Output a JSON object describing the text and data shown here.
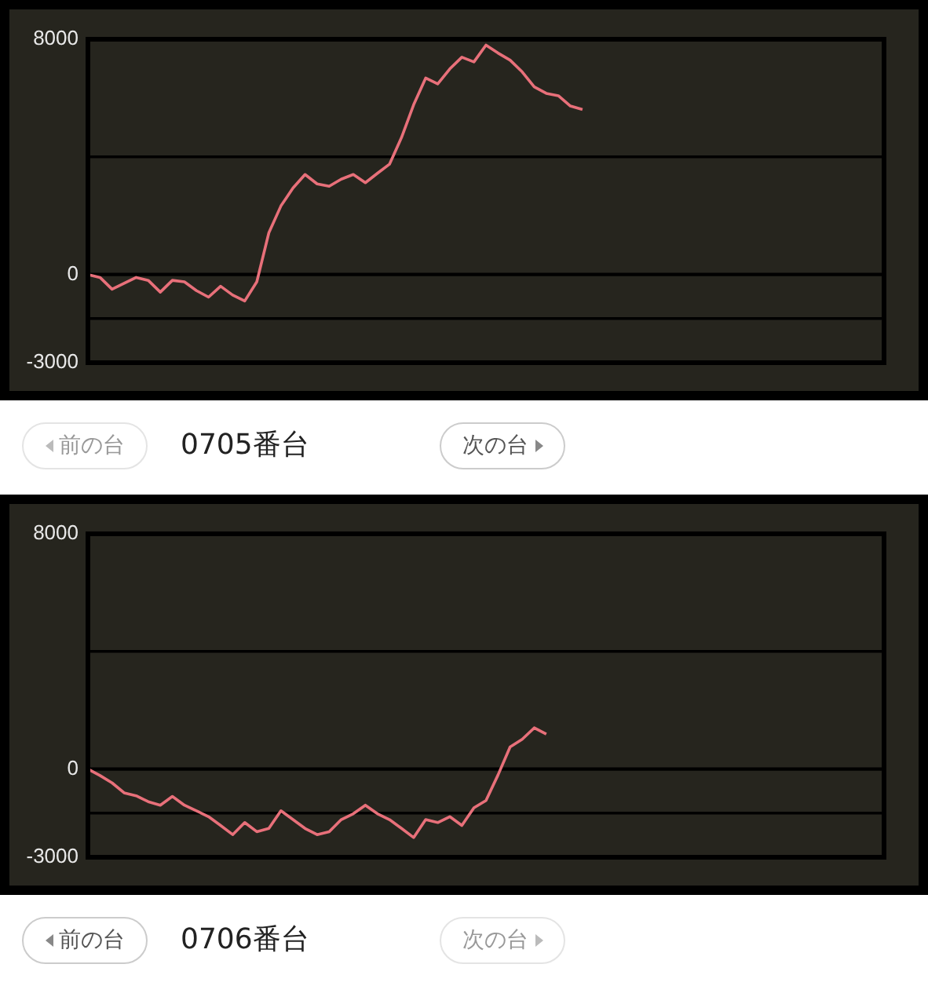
{
  "chart_data": [
    {
      "type": "line",
      "title": "0705番台",
      "annotations": [
        "前の台",
        "次の台"
      ],
      "categories": [
        null,
        null,
        null,
        null,
        null,
        null,
        null,
        null,
        null,
        null,
        null,
        null,
        null,
        null,
        null,
        null,
        null,
        null,
        null,
        null,
        null,
        null,
        null,
        null,
        null,
        null,
        null,
        null,
        null,
        null,
        null,
        null,
        null,
        null,
        null,
        null,
        null,
        null,
        null,
        null,
        null,
        null,
        null,
        null,
        null,
        null,
        null,
        null,
        null,
        null,
        null,
        null,
        null,
        null,
        null,
        null,
        null,
        null,
        null,
        null,
        null,
        null,
        null,
        null,
        null,
        null,
        null
      ],
      "series": [
        {
          "color": "#e8707a",
          "values": [
            0,
            -100,
            -500,
            -300,
            -100,
            -200,
            -600,
            -200,
            -250,
            -550,
            -770,
            -400,
            -700,
            -900,
            -250,
            1420,
            2330,
            2940,
            3400,
            3080,
            3000,
            3240,
            3400,
            3120,
            3440,
            3750,
            4660,
            5770,
            6680,
            6480,
            6990,
            7390,
            7230,
            7800,
            7530,
            7290,
            6890,
            6380,
            6160,
            6080,
            5730,
            5610,
            null,
            null,
            null,
            null,
            null,
            null,
            null,
            null,
            null,
            null,
            null,
            null,
            null,
            null,
            null,
            null,
            null,
            null,
            null,
            null,
            null,
            null,
            null,
            null,
            null
          ]
        }
      ],
      "ylim": [
        -3000,
        8000
      ],
      "yticks": [
        8000,
        0,
        -3000
      ],
      "ref_lines": [
        {
          "axis": "y",
          "value": 4000,
          "color": "#000000"
        },
        {
          "axis": "y",
          "value": -1500,
          "color": "#000000"
        }
      ],
      "grid": "y",
      "tick_labels": "y",
      "legend": false,
      "marker": "none",
      "line_style": "solid"
    },
    {
      "type": "line",
      "title": "0706番台",
      "annotations": [
        "前の台",
        "次の台"
      ],
      "categories": [
        null,
        null,
        null,
        null,
        null,
        null,
        null,
        null,
        null,
        null,
        null,
        null,
        null,
        null,
        null,
        null,
        null,
        null,
        null,
        null,
        null,
        null,
        null,
        null,
        null,
        null,
        null,
        null,
        null,
        null,
        null,
        null,
        null,
        null,
        null,
        null,
        null,
        null,
        null,
        null,
        null,
        null,
        null,
        null,
        null,
        null,
        null,
        null,
        null,
        null,
        null,
        null,
        null,
        null,
        null,
        null,
        null,
        null,
        null,
        null,
        null,
        null,
        null,
        null,
        null,
        null,
        null
      ],
      "series": [
        {
          "color": "#e8707a",
          "values": [
            0,
            -220,
            -470,
            -810,
            -910,
            -1110,
            -1230,
            -930,
            -1230,
            -1420,
            -1620,
            -1920,
            -2230,
            -1820,
            -2130,
            -2020,
            -1420,
            -1720,
            -2020,
            -2230,
            -2130,
            -1720,
            -1520,
            -1230,
            -1520,
            -1720,
            -2020,
            -2330,
            -1720,
            -1820,
            -1620,
            -1920,
            -1320,
            -1070,
            -200,
            750,
            1010,
            1400,
            1190,
            null,
            null,
            null,
            null,
            null,
            null,
            null,
            null,
            null,
            null,
            null,
            null,
            null,
            null,
            null,
            null,
            null,
            null,
            null,
            null,
            null,
            null,
            null,
            null,
            null,
            null,
            null,
            null
          ]
        }
      ],
      "ylim": [
        -3000,
        8000
      ],
      "yticks": [
        8000,
        0,
        -3000
      ],
      "ref_lines": [
        {
          "axis": "y",
          "value": 4000,
          "color": "#000000"
        },
        {
          "axis": "y",
          "value": -1500,
          "color": "#000000"
        }
      ],
      "grid": "y",
      "tick_labels": "y",
      "legend": false,
      "marker": "none",
      "line_style": "solid"
    }
  ]
}
